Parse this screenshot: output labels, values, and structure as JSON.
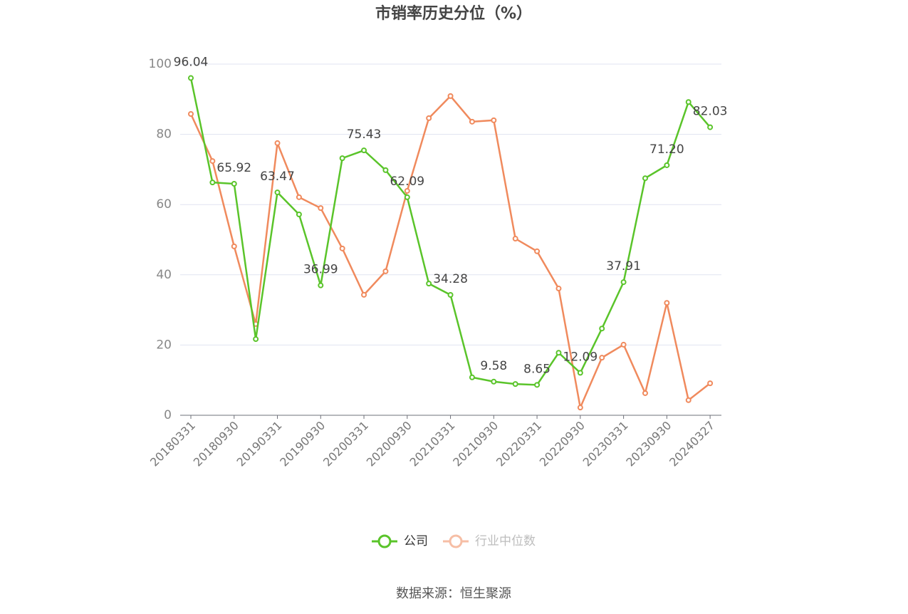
{
  "chart_data": {
    "type": "line",
    "title": "市销率历史分位（%）",
    "source": "数据来源：恒生聚源",
    "categories": [
      "20180331",
      null,
      "20180930",
      null,
      "20190331",
      null,
      "20190930",
      null,
      "20200331",
      null,
      "20200930",
      null,
      "20210331",
      null,
      "20210930",
      null,
      "20220331",
      null,
      "20220930",
      null,
      "20230331",
      null,
      "20230930",
      null,
      "20240327"
    ],
    "series": [
      {
        "name": "公司",
        "color": "#5ac42a",
        "values": [
          96.04,
          66.3,
          65.92,
          21.7,
          63.47,
          57.2,
          36.99,
          73.2,
          75.43,
          69.8,
          62.09,
          37.5,
          34.28,
          10.8,
          9.58,
          8.9,
          8.65,
          17.8,
          12.09,
          24.7,
          37.91,
          67.5,
          71.2,
          89.2,
          82.03
        ],
        "value_labels": [
          "96.04",
          null,
          "65.92",
          null,
          "63.47",
          null,
          "36.99",
          null,
          "75.43",
          null,
          "62.09",
          null,
          "34.28",
          null,
          "9.58",
          null,
          "8.65",
          null,
          "12.09",
          null,
          "37.91",
          null,
          "71.20",
          null,
          "82.03"
        ]
      },
      {
        "name": "行业中位数",
        "color": "#f08a5d",
        "values": [
          85.8,
          72.4,
          48.1,
          26.0,
          77.5,
          62.1,
          59.0,
          47.5,
          34.3,
          41.0,
          63.9,
          84.6,
          90.9,
          83.6,
          84.0,
          50.3,
          46.7,
          36.1,
          2.2,
          16.4,
          20.1,
          6.3,
          32.0,
          4.3,
          9.1
        ]
      }
    ],
    "ylim": [
      0,
      100
    ],
    "yticks": [
      0,
      20,
      40,
      60,
      80,
      100
    ],
    "grid": true,
    "legend": "bottom"
  }
}
